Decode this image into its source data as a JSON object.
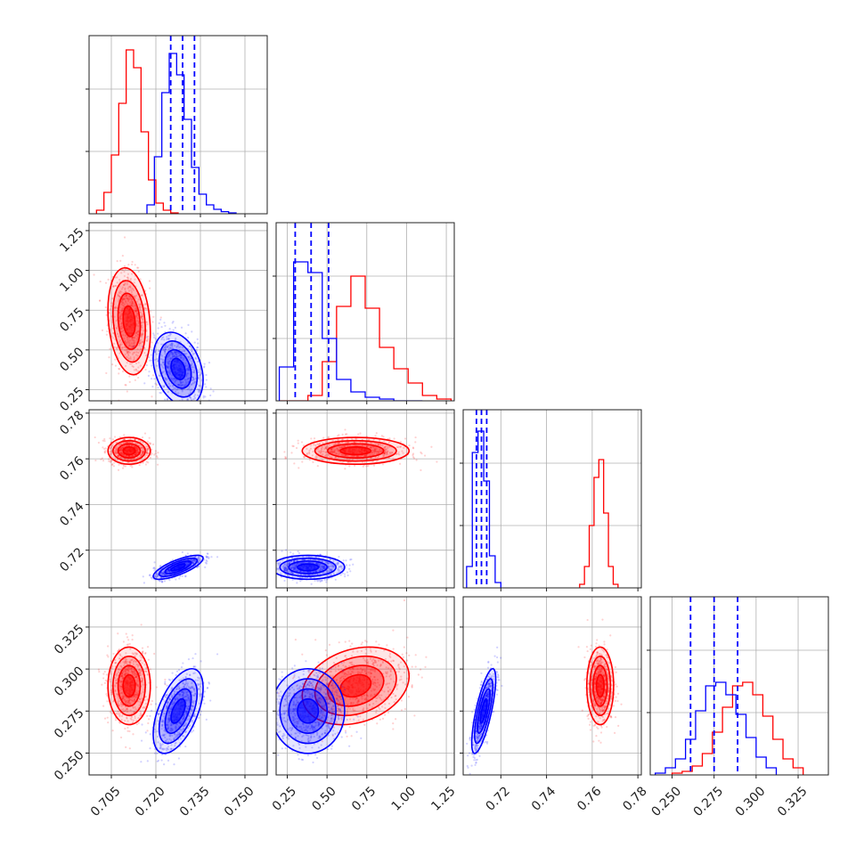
{
  "chart_data": {
    "type": "corner",
    "grid": true,
    "colors": {
      "red": "#ff0000",
      "blue": "#0000ff"
    },
    "variables": [
      {
        "ticks": [
          0.705,
          0.72,
          0.735,
          0.75
        ],
        "tick_labels": [
          "0.705",
          "0.720",
          "0.735",
          "0.750"
        ],
        "lim": [
          0.6975,
          0.7575
        ]
      },
      {
        "ticks": [
          0.25,
          0.5,
          0.75,
          1.0,
          1.25
        ],
        "tick_labels": [
          "0.25",
          "0.50",
          "0.75",
          "1.00",
          "1.25"
        ],
        "lim": [
          0.18,
          1.3
        ]
      },
      {
        "ticks": [
          0.72,
          0.74,
          0.76,
          0.78
        ],
        "tick_labels": [
          "0.72",
          "0.74",
          "0.76",
          "0.78"
        ],
        "lim": [
          0.7035,
          0.7815
        ]
      },
      {
        "ticks": [
          0.25,
          0.275,
          0.3,
          0.325
        ],
        "tick_labels": [
          "0.250",
          "0.275",
          "0.300",
          "0.325"
        ],
        "lim": [
          0.237,
          0.343
        ]
      }
    ],
    "series": [
      {
        "name": "",
        "color": "red",
        "mean": [
          0.711,
          0.68,
          0.7635,
          0.29
        ],
        "sd": [
          0.0034,
          0.16,
          0.0028,
          0.011
        ],
        "corr": [
          [
            1,
            -0.2,
            0,
            0
          ],
          [
            -0.2,
            1,
            0,
            0.25
          ],
          [
            0,
            0,
            1,
            0
          ],
          [
            0,
            0.25,
            0,
            1
          ]
        ]
      },
      {
        "name": "",
        "color": "blue",
        "mean": [
          0.7275,
          0.38,
          0.7125,
          0.275
        ],
        "sd": [
          0.004,
          0.11,
          0.0025,
          0.012
        ],
        "corr": [
          [
            1,
            -0.3,
            0.75,
            0.55
          ],
          [
            -0.3,
            1,
            0,
            0
          ],
          [
            0.75,
            0,
            1,
            0.75
          ],
          [
            0.55,
            0,
            0.75,
            1
          ]
        ]
      }
    ],
    "histograms": {
      "red": [
        {
          "bins": [
            0.7,
            0.7025,
            0.705,
            0.7075,
            0.71,
            0.7125,
            0.715,
            0.7175,
            0.72,
            0.7225,
            0.725,
            0.7275
          ],
          "counts": [
            0.02,
            0.12,
            0.33,
            0.62,
            0.92,
            0.82,
            0.46,
            0.19,
            0.06,
            0.02,
            0.005
          ]
        },
        {
          "bins": [
            0.2,
            0.29,
            0.38,
            0.47,
            0.56,
            0.65,
            0.74,
            0.83,
            0.92,
            1.01,
            1.1,
            1.19,
            1.28
          ],
          "counts": [
            0.0,
            0.0,
            0.03,
            0.22,
            0.53,
            0.7,
            0.52,
            0.3,
            0.18,
            0.1,
            0.03,
            0.01
          ]
        },
        {
          "bins": [
            0.7545,
            0.7566,
            0.7587,
            0.7608,
            0.7629,
            0.765,
            0.7671,
            0.7692,
            0.7713
          ],
          "counts": [
            0.02,
            0.12,
            0.35,
            0.62,
            0.72,
            0.42,
            0.12,
            0.02
          ]
        },
        {
          "bins": [
            0.25,
            0.256,
            0.262,
            0.268,
            0.274,
            0.28,
            0.286,
            0.292,
            0.298,
            0.304,
            0.31,
            0.316,
            0.322,
            0.328
          ],
          "counts": [
            0.01,
            0.02,
            0.05,
            0.12,
            0.24,
            0.38,
            0.5,
            0.52,
            0.45,
            0.33,
            0.2,
            0.09,
            0.04
          ]
        }
      ],
      "blue": [
        {
          "bins": [
            0.717,
            0.7195,
            0.722,
            0.7245,
            0.727,
            0.7295,
            0.732,
            0.7345,
            0.737,
            0.7395,
            0.742,
            0.7445,
            0.747
          ],
          "counts": [
            0.05,
            0.32,
            0.68,
            0.9,
            0.78,
            0.53,
            0.26,
            0.11,
            0.05,
            0.025,
            0.012,
            0.005
          ]
        },
        {
          "bins": [
            0.2,
            0.29,
            0.38,
            0.47,
            0.56,
            0.65,
            0.74,
            0.83,
            0.92,
            1.01,
            1.1
          ],
          "counts": [
            0.19,
            0.78,
            0.72,
            0.35,
            0.12,
            0.05,
            0.02,
            0.01,
            0.0,
            0.0
          ]
        },
        {
          "bins": [
            0.705,
            0.7075,
            0.71,
            0.7125,
            0.715,
            0.7175,
            0.72
          ],
          "counts": [
            0.12,
            0.76,
            0.88,
            0.6,
            0.18,
            0.03
          ]
        },
        {
          "bins": [
            0.24,
            0.246,
            0.252,
            0.258,
            0.264,
            0.27,
            0.276,
            0.282,
            0.288,
            0.294,
            0.3,
            0.306,
            0.312
          ],
          "counts": [
            0.01,
            0.04,
            0.09,
            0.2,
            0.36,
            0.5,
            0.52,
            0.45,
            0.34,
            0.21,
            0.1,
            0.04
          ]
        }
      ]
    },
    "quantile_lines_blue": [
      [
        0.725,
        0.729,
        0.733
      ],
      [
        0.3,
        0.4,
        0.51
      ],
      [
        0.7093,
        0.7115,
        0.7138
      ],
      [
        0.261,
        0.275,
        0.289
      ]
    ]
  }
}
